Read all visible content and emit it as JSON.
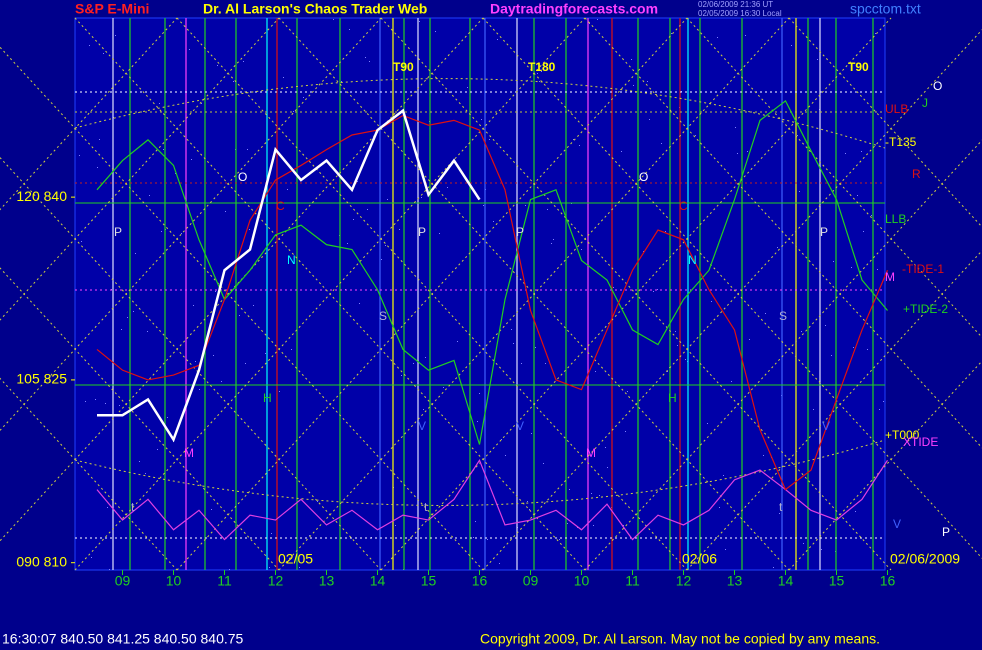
{
  "chart_data": {
    "type": "line",
    "title": "Dr. Al Larson's Chaos Trader Web",
    "header_left": "S&P E-Mini",
    "header_site": "Daytradingforecasts.com",
    "header_time1": "02/06/2009 21:36 UT",
    "header_time2": "02/05/2009 16:30 Local",
    "header_file": "spcctom.txt",
    "footer_quote": "16:30:07  840.50 841.25 840.50 840.75",
    "copyright": "Copyright 2009, Dr. Al Larson. May not be copied by any means.",
    "dates": [
      "02/05",
      "02/06",
      "02/06/2009"
    ],
    "categories": [
      null,
      "09",
      null,
      "10",
      null,
      "11",
      null,
      "12",
      null,
      "13",
      null,
      "14",
      null,
      "15",
      null,
      "16",
      null,
      "09",
      null,
      "10",
      null,
      "11",
      null,
      "12",
      null,
      "13",
      null,
      "14",
      null,
      "15",
      null,
      "16"
    ],
    "ylim": [
      809.4,
      854.7
    ],
    "yticks": [
      {
        "value": 810,
        "label": "090  810"
      },
      {
        "value": 825,
        "label": "105  825"
      },
      {
        "value": 840,
        "label": "120  840"
      }
    ],
    "series": [
      {
        "name": "Price",
        "color": "#ffffff",
        "values": [
          822.1,
          822.1,
          823.4,
          820.1,
          825.8,
          834.0,
          835.7,
          843.9,
          841.4,
          843.0,
          840.6,
          845.5,
          847.1,
          840.2,
          843.0,
          839.8,
          null,
          null,
          null,
          null,
          null,
          null,
          null,
          null,
          null,
          null,
          null,
          null,
          null,
          null,
          null,
          null
        ]
      },
      {
        "name": "Red flow",
        "color": "#e01010",
        "values": [
          827.5,
          825.8,
          825.0,
          825.4,
          826.2,
          831.6,
          838.1,
          841.4,
          842.6,
          843.9,
          845.1,
          845.5,
          846.7,
          845.9,
          846.3,
          845.5,
          840.6,
          830.7,
          825.0,
          824.2,
          829.1,
          834.0,
          837.3,
          836.5,
          832.4,
          829.1,
          820.9,
          816.0,
          817.6,
          823.4,
          829.1,
          834.0
        ]
      },
      {
        "name": "Green flow",
        "color": "#20d020",
        "values": [
          840.6,
          843.0,
          844.7,
          842.6,
          836.5,
          831.6,
          834.0,
          836.9,
          837.7,
          836.1,
          835.7,
          832.4,
          827.5,
          825.8,
          826.6,
          819.7,
          831.6,
          839.8,
          840.6,
          834.8,
          833.2,
          829.1,
          827.9,
          831.6,
          834.0,
          839.8,
          846.3,
          847.9,
          843.8,
          839.8,
          833.2,
          830.7
        ]
      },
      {
        "name": "Tide",
        "color": "#e040e0",
        "values": [
          816.0,
          813.5,
          815.2,
          812.7,
          814.3,
          811.9,
          813.9,
          813.5,
          815.2,
          813.1,
          814.3,
          812.7,
          813.9,
          813.5,
          815.2,
          818.4,
          813.1,
          813.5,
          814.3,
          812.7,
          814.8,
          811.9,
          813.9,
          813.1,
          814.3,
          816.8,
          817.6,
          816.0,
          814.3,
          813.5,
          815.2,
          818.4
        ]
      }
    ],
    "annotations": [
      {
        "text": "T90",
        "color": "#ffff00"
      },
      {
        "text": "T180",
        "color": "#ffff00"
      },
      {
        "text": "T90",
        "color": "#ffff00"
      },
      {
        "text": "ULB",
        "color": "#e01010"
      },
      {
        "text": "-T135",
        "color": "#ffff00"
      },
      {
        "text": "R",
        "color": "#e01010"
      },
      {
        "text": "LLB",
        "color": "#20d020"
      },
      {
        "text": "M",
        "color": "#ff40ff"
      },
      {
        "text": "-TIDE-1",
        "color": "#e01010"
      },
      {
        "text": "+TIDE-2",
        "color": "#20d020"
      },
      {
        "text": "+T000",
        "color": "#ffff00"
      },
      {
        "text": "XTIDE",
        "color": "#ff40ff"
      },
      {
        "text": "V",
        "color": "#4060ff"
      },
      {
        "text": "P",
        "color": "#ffffff"
      },
      {
        "text": "O",
        "color": "#ffffff"
      },
      {
        "text": "J",
        "color": "#20d020"
      },
      {
        "text": "O",
        "color": "#ffffff"
      },
      {
        "text": "O",
        "color": "#ffffff"
      },
      {
        "text": "P",
        "color": "#e0e0e0"
      },
      {
        "text": "P",
        "color": "#e0e0e0"
      },
      {
        "text": "P",
        "color": "#e0e0e0"
      },
      {
        "text": "P",
        "color": "#e0e0e0"
      },
      {
        "text": "N",
        "color": "#00ffff"
      },
      {
        "text": "N",
        "color": "#00ffff"
      },
      {
        "text": "S",
        "color": "#b0b0d0"
      },
      {
        "text": "S",
        "color": "#b0b0d0"
      },
      {
        "text": "H",
        "color": "#20d020"
      },
      {
        "text": "H",
        "color": "#20d020"
      },
      {
        "text": "C",
        "color": "#e01010"
      },
      {
        "text": "C",
        "color": "#e01010"
      },
      {
        "text": "M",
        "color": "#ff40ff"
      },
      {
        "text": "M",
        "color": "#ff40ff"
      },
      {
        "text": "V",
        "color": "#4060ff"
      },
      {
        "text": "V",
        "color": "#4060ff"
      },
      {
        "text": "V",
        "color": "#4060ff"
      },
      {
        "text": "t",
        "color": "#b0b0d0"
      },
      {
        "text": "t",
        "color": "#b0b0d0"
      },
      {
        "text": "t",
        "color": "#b0b0d0"
      }
    ]
  }
}
